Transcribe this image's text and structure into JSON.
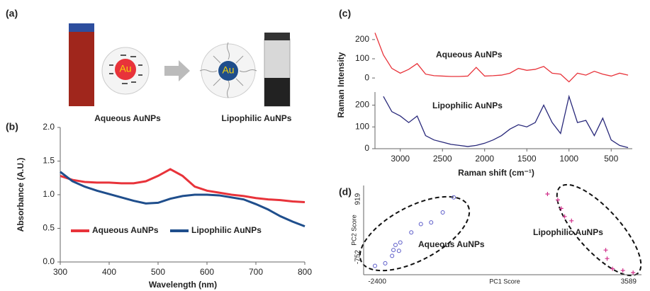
{
  "figure": {
    "panel_labels": [
      "(a)",
      "(b)",
      "(c)",
      "(d)"
    ],
    "illustration": {
      "core_labels": [
        "Au",
        "Au"
      ],
      "captions": [
        "Aqueous AuNPs",
        "Lipophilic AuNPs"
      ]
    }
  },
  "chart_data": [
    {
      "type": "line",
      "xlabel": "Wavelength (nm)",
      "ylabel": "Absorbance (A.U.)",
      "x": [
        300,
        325,
        350,
        375,
        400,
        425,
        450,
        475,
        500,
        525,
        550,
        575,
        600,
        625,
        650,
        675,
        700,
        725,
        750,
        775,
        800
      ],
      "xlim": [
        300,
        800
      ],
      "xticks": [
        300,
        400,
        500,
        600,
        700,
        800
      ],
      "ylim": [
        0,
        2
      ],
      "yticks": [
        {
          "value": 0,
          "label": "0.0"
        },
        0.5,
        {
          "value": 1,
          "label": "1.0"
        },
        1.5,
        {
          "value": 2,
          "label": "2.0"
        }
      ],
      "legend": "lower center",
      "series": [
        {
          "name": "Aqueous AuNPs",
          "color": "#e8333a",
          "values": [
            1.28,
            1.22,
            1.19,
            1.18,
            1.18,
            1.17,
            1.17,
            1.2,
            1.28,
            1.38,
            1.28,
            1.12,
            1.06,
            1.03,
            1.0,
            0.98,
            0.95,
            0.93,
            0.92,
            0.9,
            0.89
          ]
        },
        {
          "name": "Lipophilic AuNPs",
          "color": "#1f4e8c",
          "values": [
            1.34,
            1.2,
            1.12,
            1.06,
            1.01,
            0.96,
            0.91,
            0.87,
            0.88,
            0.94,
            0.98,
            1.0,
            1.0,
            0.99,
            0.96,
            0.93,
            0.86,
            0.78,
            0.68,
            0.6,
            0.53
          ]
        }
      ]
    },
    {
      "type": "line",
      "x": [
        3300,
        3200,
        3100,
        3000,
        2900,
        2800,
        2700,
        2600,
        2500,
        2400,
        2300,
        2200,
        2100,
        2000,
        1900,
        1800,
        1700,
        1600,
        1500,
        1400,
        1300,
        1200,
        1100,
        1000,
        900,
        800,
        700,
        600,
        500,
        400,
        300
      ],
      "xlim": [
        3300,
        250
      ],
      "ylim": [
        -40,
        240
      ],
      "yticks": [
        0,
        100,
        200
      ],
      "series": [
        {
          "name": "Aqueous AuNPs",
          "color": "#e8333a",
          "values": [
            235,
            120,
            50,
            25,
            45,
            75,
            20,
            12,
            10,
            8,
            8,
            10,
            55,
            10,
            12,
            15,
            25,
            50,
            40,
            45,
            60,
            25,
            20,
            -20,
            25,
            15,
            35,
            20,
            10,
            25,
            15
          ]
        }
      ]
    },
    {
      "type": "line",
      "xlabel": "Raman shift (cm⁻¹)",
      "ylabel": "Raman Intensity",
      "x": [
        3300,
        3200,
        3100,
        3000,
        2900,
        2800,
        2700,
        2600,
        2500,
        2400,
        2300,
        2200,
        2100,
        2000,
        1900,
        1800,
        1700,
        1600,
        1500,
        1400,
        1300,
        1200,
        1100,
        1000,
        900,
        800,
        700,
        600,
        500,
        400,
        300
      ],
      "xlim": [
        3300,
        250
      ],
      "xticks": [
        3000,
        2500,
        2000,
        1500,
        1000,
        500
      ],
      "ylim": [
        0,
        260
      ],
      "yticks": [
        0,
        100,
        200
      ],
      "series": [
        {
          "name": "Lipophilic AuNPs",
          "color": "#28287a",
          "values": [
            null,
            240,
            170,
            150,
            120,
            150,
            60,
            40,
            30,
            20,
            15,
            10,
            15,
            25,
            40,
            60,
            90,
            110,
            100,
            120,
            200,
            120,
            70,
            240,
            120,
            130,
            60,
            140,
            40,
            15,
            5
          ]
        }
      ]
    },
    {
      "type": "scatter",
      "xlabel": "PC1 Score",
      "ylabel": "PC2 Score",
      "xlim": [
        -2500,
        3700
      ],
      "ylim": [
        -1000,
        1100
      ],
      "xticks": [
        -2400,
        3589
      ],
      "yticks": [
        -752,
        919
      ],
      "series": [
        {
          "name": "Aqueous AuNPs",
          "color": "#5a5ac8",
          "marker": "circle",
          "x": [
            -2247,
            -2018,
            -1865,
            -1835,
            -1789,
            -1712,
            -1682,
            -1437,
            -1223,
            -994,
            -735,
            -490
          ],
          "y": [
            -791,
            -732,
            -556,
            -418,
            -300,
            -438,
            -241,
            -5,
            192,
            231,
            467,
            821
          ]
        },
        {
          "name": "Lipophilic AuNPs",
          "color": "#d0308a",
          "marker": "plus",
          "x": [
            1603,
            1833,
            1909,
            1985,
            2138,
            2902,
            2933,
            3055,
            3284,
            3513
          ],
          "y": [
            900,
            760,
            560,
            370,
            270,
            -420,
            -620,
            -860,
            -900,
            -950
          ]
        }
      ]
    }
  ]
}
